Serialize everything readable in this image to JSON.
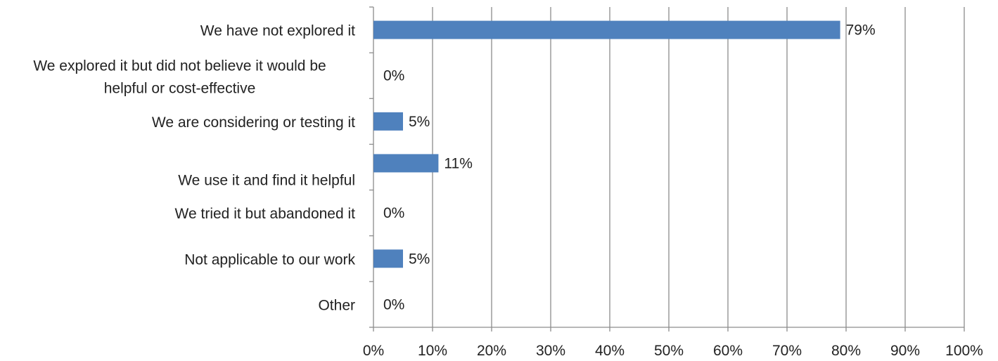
{
  "chart_data": {
    "type": "bar",
    "orientation": "horizontal",
    "categories": [
      "We have not explored it",
      "We explored it but did not believe it would be helpful or cost-effective",
      "We are considering or testing it",
      "We use it and find it helpful",
      "We tried it but abandoned it",
      "Not applicable to our work",
      "Other"
    ],
    "category_lines": [
      [
        "We have not explored it"
      ],
      [
        "We explored it but did not believe it would be",
        "helpful or cost-effective"
      ],
      [
        "We are considering or testing it"
      ],
      [
        "We use it and find it helpful"
      ],
      [
        "We tried it but abandoned it"
      ],
      [
        "Not applicable to our work"
      ],
      [
        "Other"
      ]
    ],
    "values": [
      79,
      0,
      5,
      11,
      0,
      5,
      0
    ],
    "value_labels": [
      "79%",
      "0%",
      "5%",
      "11%",
      "0%",
      "5%",
      "0%"
    ],
    "xlim": [
      0,
      100
    ],
    "x_ticks": [
      0,
      10,
      20,
      30,
      40,
      50,
      60,
      70,
      80,
      90,
      100
    ],
    "x_tick_labels": [
      "0%",
      "10%",
      "20%",
      "30%",
      "40%",
      "50%",
      "60%",
      "70%",
      "80%",
      "90%",
      "100%"
    ],
    "title": "",
    "xlabel": "",
    "ylabel": "",
    "grid": "vertical",
    "bar_color": "#4F81BD",
    "grid_color": "#8C8C8C",
    "axis_color": "#8C8C8C"
  }
}
